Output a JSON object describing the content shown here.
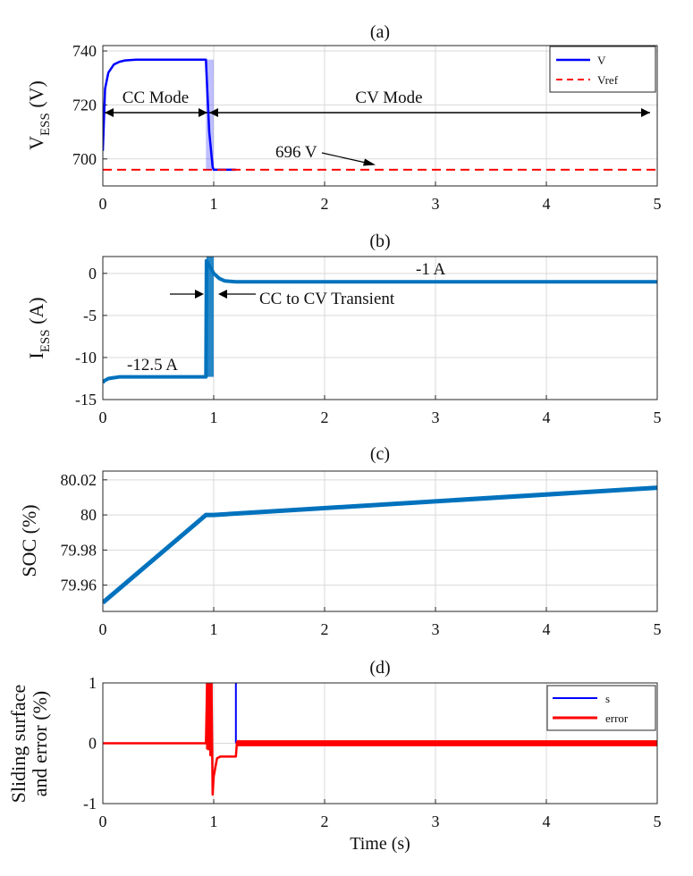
{
  "figure": {
    "xlabel": "Time (s)"
  },
  "chart_data": [
    {
      "id": "a",
      "type": "line",
      "title": "(a)",
      "ylabel_main": "V",
      "ylabel_sub": "ESS",
      "ylabel_unit": " (V)",
      "xlim": [
        0,
        5
      ],
      "ylim": [
        690,
        742
      ],
      "xticks": [
        0,
        1,
        2,
        3,
        4,
        5
      ],
      "yticks": [
        700,
        720,
        740
      ],
      "grid": true,
      "legend": {
        "position": "top-right",
        "entries": [
          "V",
          "Vref"
        ]
      },
      "series": [
        {
          "name": "V",
          "color": "#0000ff",
          "x": [
            0,
            0.02,
            0.05,
            0.1,
            0.15,
            0.2,
            0.3,
            0.5,
            0.8,
            0.93,
            0.935,
            0.96,
            0.99,
            1.0,
            1.2
          ],
          "y": [
            703,
            726,
            732,
            735,
            736,
            736.5,
            736.8,
            736.8,
            736.8,
            736.8,
            732,
            710,
            697,
            696,
            696
          ]
        },
        {
          "name": "Vref",
          "color": "#ff0000",
          "style": "dashed",
          "x": [
            0,
            5
          ],
          "y": [
            696,
            696
          ]
        }
      ],
      "annotations": [
        {
          "text": "CC Mode",
          "x": 0.36,
          "y": 725
        },
        {
          "text": "CV Mode",
          "x": 2.6,
          "y": 725
        },
        {
          "text": "696 V",
          "x": 1.6,
          "y": 703
        }
      ]
    },
    {
      "id": "b",
      "type": "line",
      "title": "(b)",
      "ylabel_main": "I",
      "ylabel_sub": "ESS",
      "ylabel_unit": " (A)",
      "xlim": [
        0,
        5
      ],
      "ylim": [
        -15,
        2
      ],
      "xticks": [
        0,
        1,
        2,
        3,
        4,
        5
      ],
      "yticks": [
        -15,
        -10,
        -5,
        0
      ],
      "grid": true,
      "series": [
        {
          "name": "I_ESS",
          "color": "#0072bd",
          "x": [
            0,
            0.01,
            0.05,
            0.15,
            0.3,
            0.6,
            0.93,
            0.935,
            1.0,
            1.05,
            1.1,
            1.2,
            1.5,
            3,
            5
          ],
          "y": [
            -13,
            -12.8,
            -12.5,
            -12.3,
            -12.3,
            -12.3,
            -12.3,
            1.5,
            0,
            -0.6,
            -0.9,
            -1,
            -1,
            -1,
            -1
          ]
        }
      ],
      "annotations": [
        {
          "text": "-12.5 A",
          "x": 0.5,
          "y": -11
        },
        {
          "text": "-1 A",
          "x": 3.0,
          "y": 0.1
        },
        {
          "text": "CC to CV Transient",
          "x": 1.65,
          "y": -2.5
        }
      ]
    },
    {
      "id": "c",
      "type": "line",
      "title": "(c)",
      "ylabel_main": "SOC (%)",
      "xlim": [
        0,
        5
      ],
      "ylim": [
        79.945,
        80.025
      ],
      "xticks": [
        0,
        1,
        2,
        3,
        4,
        5
      ],
      "yticks": [
        79.96,
        79.98,
        80,
        80.02
      ],
      "ytick_labels": [
        "79.96",
        "79.98",
        "80",
        "80.02"
      ],
      "grid": true,
      "series": [
        {
          "name": "SOC",
          "color": "#0072bd",
          "x": [
            0,
            0.93,
            1.0,
            5
          ],
          "y": [
            79.95,
            80.0,
            80.0,
            80.0155
          ]
        }
      ]
    },
    {
      "id": "d",
      "type": "line",
      "title": "(d)",
      "ylabel_main": "Sliding surface",
      "ylabel_main2": "and error (%)",
      "xlim": [
        0,
        5
      ],
      "ylim": [
        -1,
        1
      ],
      "xticks": [
        0,
        1,
        2,
        3,
        4,
        5
      ],
      "yticks": [
        -1,
        0,
        1
      ],
      "grid": true,
      "legend": {
        "position": "top-right",
        "entries": [
          "s",
          "error"
        ]
      },
      "series": [
        {
          "name": "s",
          "color": "#0000ff",
          "x": [
            1.2,
            1.2,
            1.21
          ],
          "y": [
            0,
            1,
            1
          ]
        },
        {
          "name": "error",
          "color": "#ff0000",
          "x": [
            0,
            0.93,
            0.94,
            0.95,
            0.96,
            0.97,
            0.98,
            0.99,
            1.0,
            1.03,
            1.06,
            1.2,
            1.21,
            5
          ],
          "y": [
            0,
            0,
            1,
            -0.1,
            1,
            -0.2,
            1,
            -0.85,
            -0.55,
            -0.25,
            -0.22,
            -0.22,
            0.02,
            0.02
          ]
        }
      ]
    }
  ]
}
